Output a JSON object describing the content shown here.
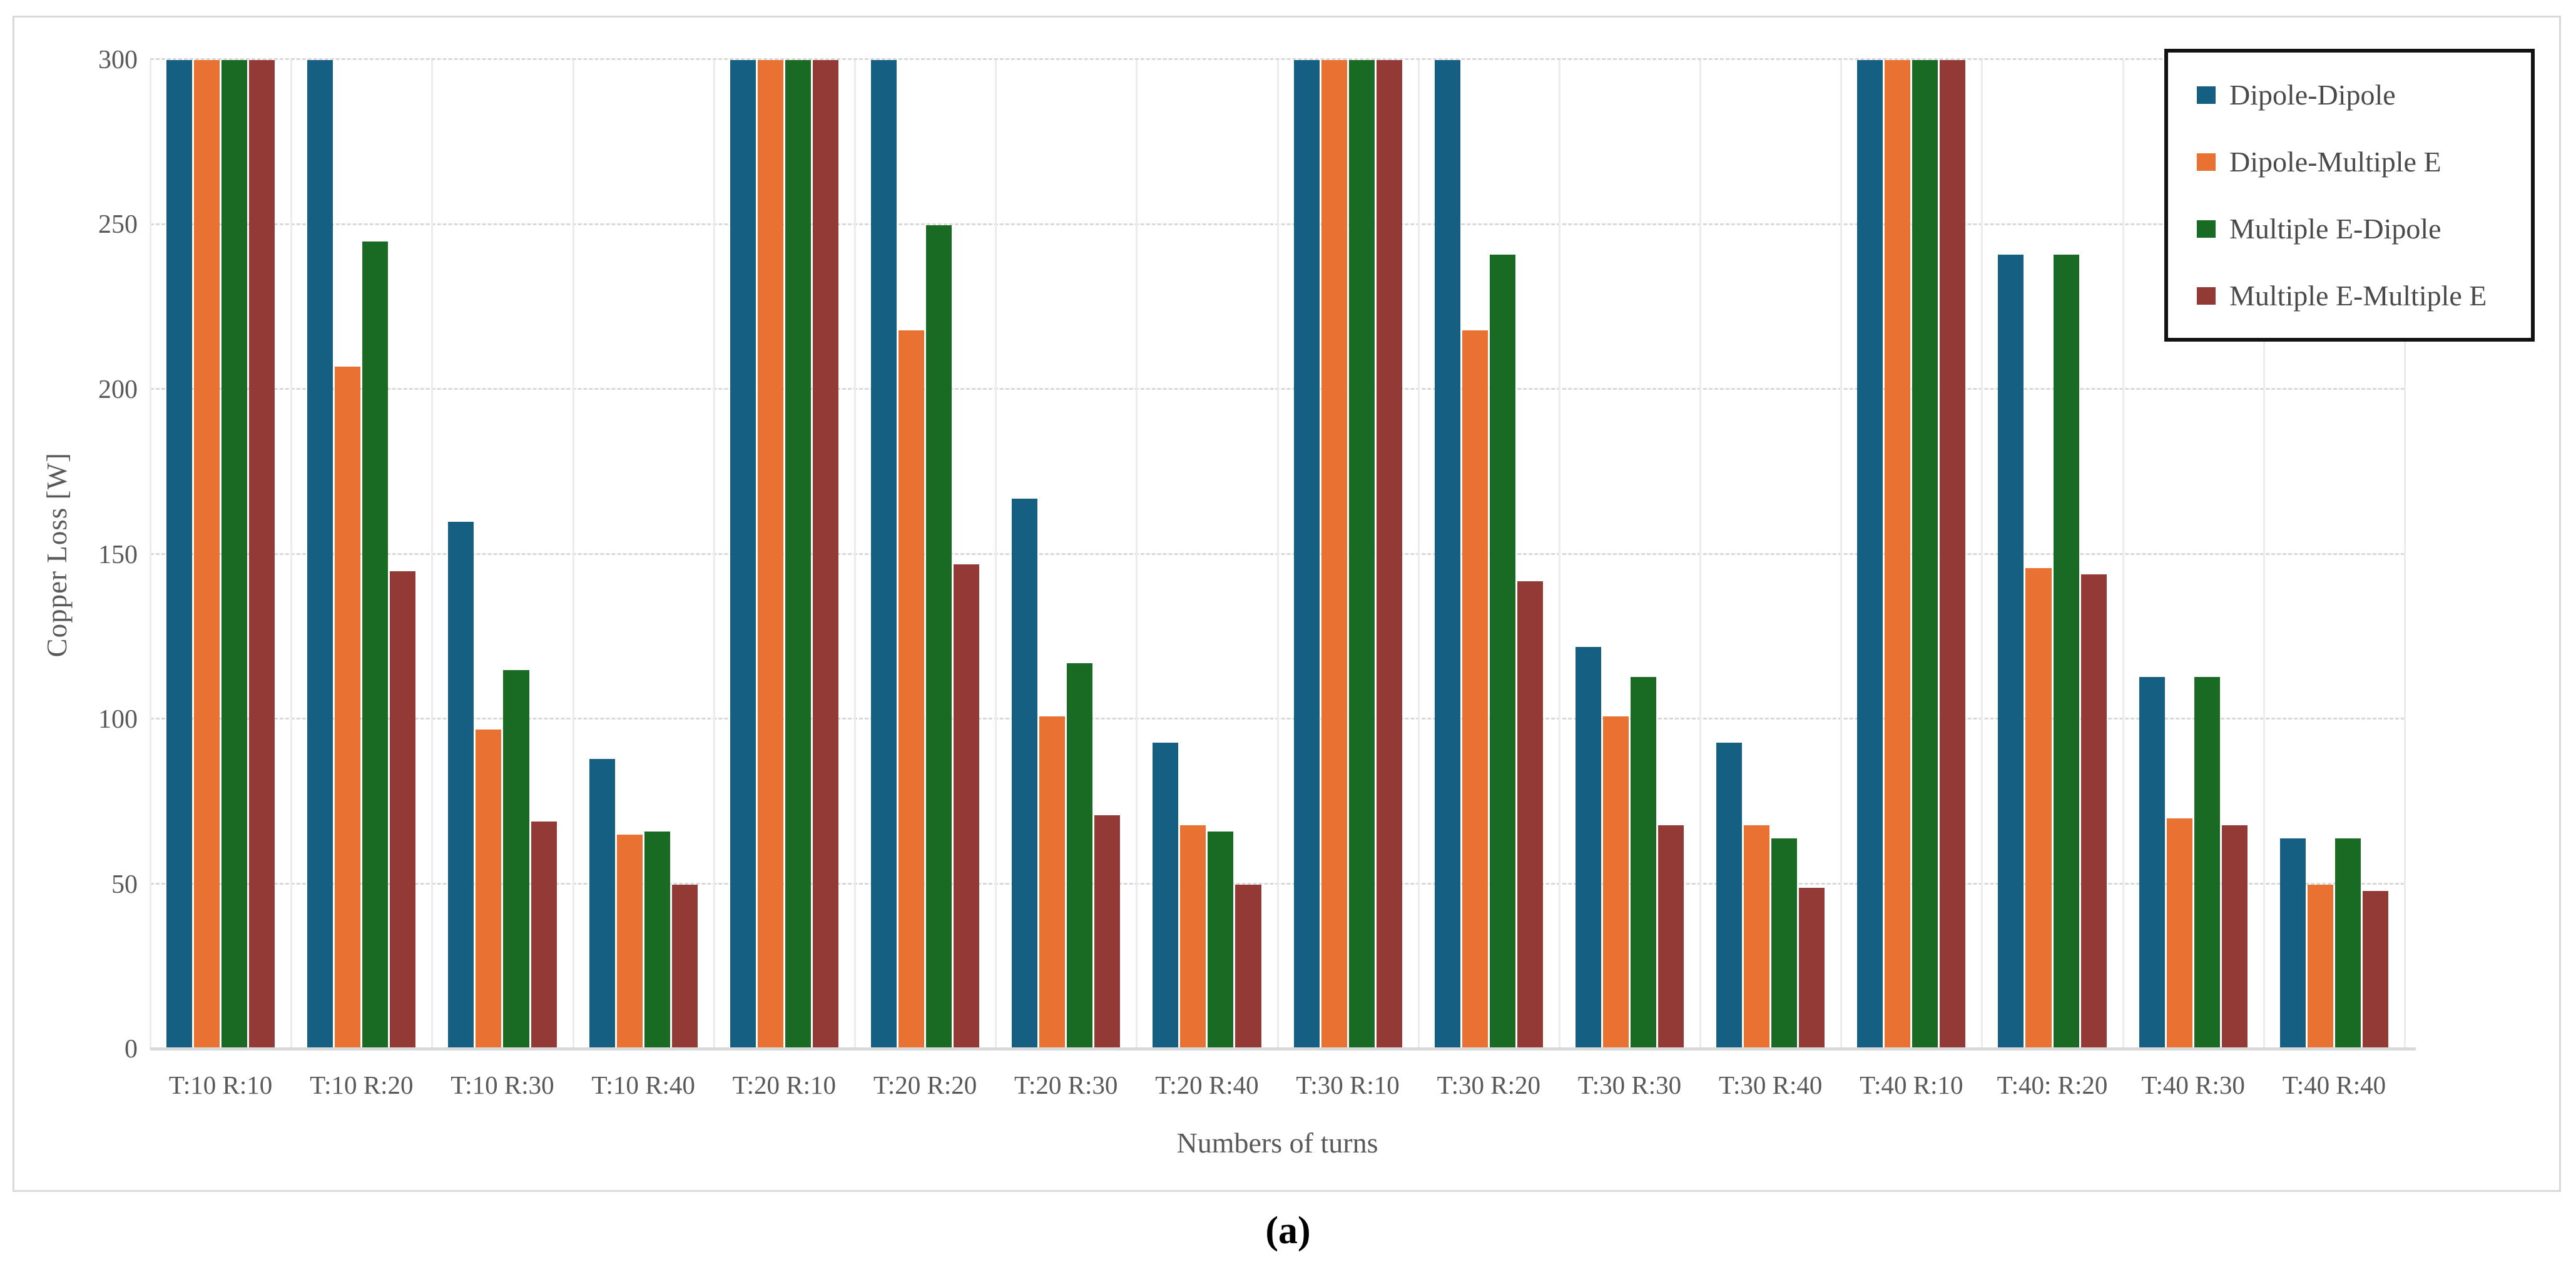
{
  "figure": {
    "caption": "(a)"
  },
  "chart_data": {
    "type": "bar",
    "title": "",
    "xlabel": "Numbers of turns",
    "ylabel": "Copper Loss [W]",
    "ylim": [
      0,
      300
    ],
    "yticks": [
      0,
      50,
      100,
      150,
      200,
      250,
      300
    ],
    "grid": {
      "horizontal": "dashed",
      "vertical": "solid"
    },
    "legend_position": "top-right",
    "legend_border_color": "#121212",
    "categories": [
      "T:10 R:10",
      "T:10 R:20",
      "T:10 R:30",
      "T:10 R:40",
      "T:20 R:10",
      "T:20 R:20",
      "T:20 R:30",
      "T:20 R:40",
      "T:30 R:10",
      "T:30 R:20",
      "T:30 R:30",
      "T:30 R:40",
      "T:40 R:10",
      "T:40: R:20",
      "T:40 R:30",
      "T:40 R:40"
    ],
    "series": [
      {
        "name": "Dipole-Dipole",
        "color": "#156082",
        "values": [
          300,
          300,
          160,
          88,
          300,
          300,
          167,
          93,
          300,
          300,
          122,
          93,
          300,
          241,
          113,
          64
        ]
      },
      {
        "name": "Dipole-Multiple E",
        "color": "#E97132",
        "values": [
          300,
          207,
          97,
          65,
          300,
          218,
          101,
          68,
          300,
          218,
          101,
          68,
          300,
          146,
          70,
          50
        ]
      },
      {
        "name": "Multiple E-Dipole",
        "color": "#196B24",
        "values": [
          300,
          245,
          115,
          66,
          300,
          250,
          117,
          66,
          300,
          241,
          113,
          64,
          300,
          241,
          113,
          64
        ]
      },
      {
        "name": "Multiple E-Multiple E",
        "color": "#943A36",
        "values": [
          300,
          145,
          69,
          50,
          300,
          147,
          71,
          50,
          300,
          142,
          68,
          49,
          300,
          144,
          68,
          48
        ]
      }
    ]
  }
}
